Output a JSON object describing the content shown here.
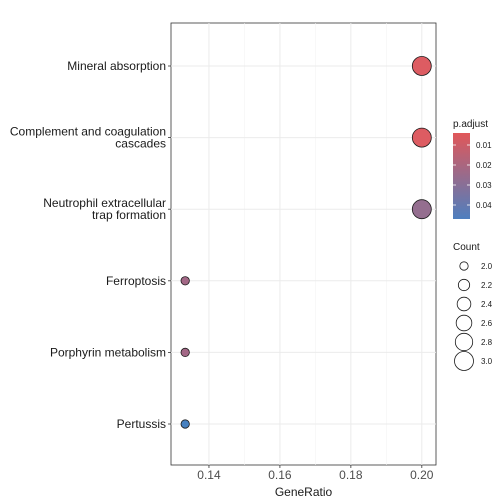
{
  "chart_data": {
    "type": "scatter",
    "title": "",
    "xlabel": "GeneRatio",
    "ylabel": "",
    "xlim": [
      0.1293,
      0.204
    ],
    "x_ticks": [
      "0.14",
      "0.16",
      "0.18",
      "0.20"
    ],
    "x_tick_values": [
      0.14,
      0.16,
      0.18,
      0.2
    ],
    "grid": true,
    "legend_position": "right",
    "categories": [
      {
        "label": "Mineral absorption",
        "lines": [
          "Mineral absorption"
        ]
      },
      {
        "label": "Complement and coagulation cascades",
        "lines": [
          "Complement and coagulation",
          "cascades"
        ]
      },
      {
        "label": "Neutrophil extracellular trap formation",
        "lines": [
          "Neutrophil extracellular",
          "trap formation"
        ]
      },
      {
        "label": "Ferroptosis",
        "lines": [
          "Ferroptosis"
        ]
      },
      {
        "label": "Porphyrin metabolism",
        "lines": [
          "Porphyrin metabolism"
        ]
      },
      {
        "label": "Pertussis",
        "lines": [
          "Pertussis"
        ]
      }
    ],
    "points": [
      {
        "term": "Mineral absorption",
        "gene_ratio": 0.2,
        "count": 3,
        "p_adjust": 0.004,
        "color": "#DD5C62"
      },
      {
        "term": "Complement and coagulation cascades",
        "gene_ratio": 0.2,
        "count": 3,
        "p_adjust": 0.004,
        "color": "#DD5C62"
      },
      {
        "term": "Neutrophil extracellular trap formation",
        "gene_ratio": 0.2,
        "count": 3,
        "p_adjust": 0.028,
        "color": "#946E8F"
      },
      {
        "term": "Ferroptosis",
        "gene_ratio": 0.1333,
        "count": 2,
        "p_adjust": 0.024,
        "color": "#A36886"
      },
      {
        "term": "Porphyrin metabolism",
        "gene_ratio": 0.1333,
        "count": 2,
        "p_adjust": 0.024,
        "color": "#A36886"
      },
      {
        "term": "Pertussis",
        "gene_ratio": 0.1333,
        "count": 2,
        "p_adjust": 0.047,
        "color": "#4781C0"
      }
    ],
    "color_legend": {
      "title": "p.adjust",
      "labels": [
        "0.01",
        "0.02",
        "0.03",
        "0.04"
      ],
      "values": [
        0.01,
        0.02,
        0.03,
        0.04
      ],
      "range": [
        0.004,
        0.047
      ],
      "low_color": "#E15759",
      "high_color": "#4E7FBF"
    },
    "size_legend": {
      "title": "Count",
      "labels": [
        "2.0",
        "2.2",
        "2.4",
        "2.6",
        "2.8",
        "3.0"
      ],
      "values": [
        2.0,
        2.2,
        2.4,
        2.6,
        2.8,
        3.0
      ]
    }
  }
}
